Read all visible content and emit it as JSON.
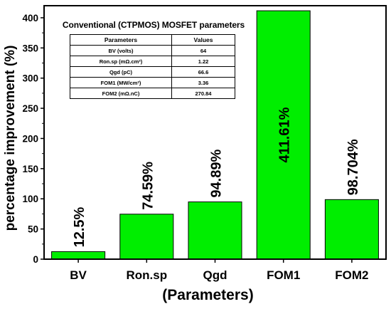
{
  "chart_data": {
    "type": "bar",
    "categories": [
      "BV",
      "Ron.sp",
      "Qgd",
      "FOM1",
      "FOM2"
    ],
    "values": [
      12.5,
      74.59,
      94.89,
      411.61,
      98.704
    ],
    "data_labels": [
      "12.5%",
      "74.59%",
      "94.89%",
      "411.61%",
      "98.704%"
    ],
    "title": "",
    "xlabel": "(Parameters)",
    "ylabel": "percentage improvement (%)",
    "ylim": [
      0,
      420
    ],
    "yticks": [
      0,
      50,
      100,
      150,
      200,
      250,
      300,
      350,
      400
    ],
    "bar_color": "#00ee00",
    "grid": false,
    "inset_table": {
      "title": "Conventional (CTPMOS) MOSFET parameters",
      "headers": [
        "Parameters",
        "Values"
      ],
      "rows": [
        [
          "BV (volts)",
          "64"
        ],
        [
          "Ron.sp (mΩ.cm²)",
          "1.22"
        ],
        [
          "Qgd (pC)",
          "66.6"
        ],
        [
          "FOM1 (MW/cm²)",
          "3.36"
        ],
        [
          "FOM2 (mΩ.nC)",
          "270.84"
        ]
      ]
    }
  }
}
